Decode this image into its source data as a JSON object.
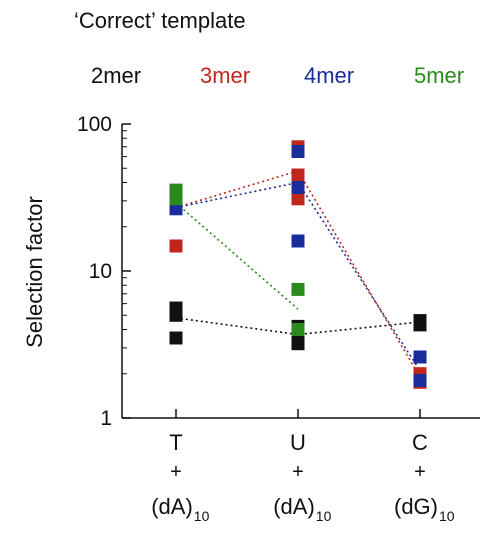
{
  "chart_data": {
    "type": "scatter",
    "title": "‘Correct’ template",
    "ylabel": "Selection factor",
    "yscale": "log",
    "ylim": [
      1,
      100
    ],
    "yticks": [
      1,
      10,
      100
    ],
    "grid": false,
    "legend_position": "top",
    "categories": [
      {
        "top": "T",
        "mid": "+",
        "base": "(dA)",
        "sub": "10"
      },
      {
        "top": "U",
        "mid": "+",
        "base": "(dA)",
        "sub": "10"
      },
      {
        "top": "C",
        "mid": "+",
        "base": "(dG)",
        "sub": "10"
      }
    ],
    "series": [
      {
        "name": "2mer",
        "color": "#111111",
        "points": [
          [
            0,
            3.5
          ],
          [
            0,
            5.0
          ],
          [
            0,
            5.6
          ],
          [
            1,
            3.2
          ],
          [
            1,
            3.6
          ],
          [
            1,
            4.2
          ],
          [
            2,
            4.3
          ],
          [
            2,
            4.6
          ]
        ],
        "means": [
          4.8,
          3.7,
          4.5
        ]
      },
      {
        "name": "3mer",
        "color": "#c0261c",
        "points": [
          [
            0,
            14.8
          ],
          [
            0,
            28.0
          ],
          [
            1,
            31.0
          ],
          [
            1,
            45.0
          ],
          [
            1,
            70.0
          ],
          [
            2,
            1.75
          ],
          [
            2,
            2.0
          ]
        ],
        "means": [
          27.0,
          48.0,
          1.9
        ]
      },
      {
        "name": "4mer",
        "color": "#1a2c9c",
        "points": [
          [
            0,
            26.5
          ],
          [
            1,
            16.0
          ],
          [
            1,
            37.0
          ],
          [
            1,
            65.0
          ],
          [
            2,
            1.8
          ],
          [
            2,
            2.6
          ]
        ],
        "means": [
          27.0,
          40.0,
          2.1
        ]
      },
      {
        "name": "5mer",
        "color": "#2a8a1c",
        "points": [
          [
            0,
            31.0
          ],
          [
            0,
            35.5
          ],
          [
            1,
            7.5
          ],
          [
            1,
            4.0
          ]
        ],
        "means": [
          29.0,
          5.5
        ]
      }
    ]
  }
}
